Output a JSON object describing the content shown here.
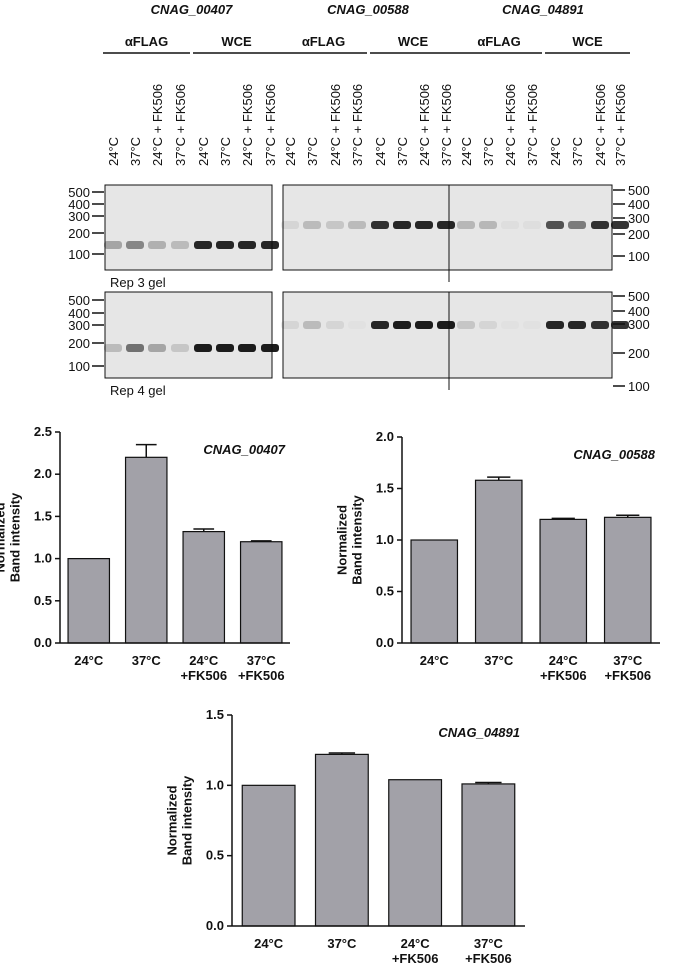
{
  "gel": {
    "genes": [
      {
        "name": "CNAG_00407",
        "groups": [
          {
            "label": "αFLAG",
            "lanes": [
              "24°C",
              "37°C",
              "24°C + FK506",
              "37°C + FK506"
            ]
          },
          {
            "label": "WCE",
            "lanes": [
              "24°C",
              "37°C",
              "24°C + FK506",
              "37°C + FK506"
            ]
          }
        ]
      },
      {
        "name": "CNAG_00588",
        "groups": [
          {
            "label": "αFLAG",
            "lanes": [
              "24°C",
              "37°C",
              "24°C + FK506",
              "37°C + FK506"
            ]
          },
          {
            "label": "WCE",
            "lanes": [
              "24°C",
              "37°C",
              "24°C + FK506",
              "37°C + FK506"
            ]
          }
        ]
      },
      {
        "name": "CNAG_04891",
        "groups": [
          {
            "label": "αFLAG",
            "lanes": [
              "24°C",
              "37°C",
              "24°C + FK506",
              "37°C + FK506"
            ]
          },
          {
            "label": "WCE",
            "lanes": [
              "24°C",
              "37°C",
              "24°C + FK506",
              "37°C + FK506"
            ]
          }
        ]
      }
    ],
    "ladder": [
      "500",
      "400",
      "300",
      "200",
      "100"
    ],
    "replicates": [
      "Rep 3 gel",
      "Rep 4 gel"
    ]
  },
  "chart_data": [
    {
      "type": "bar",
      "title": "CNAG_00407",
      "ylabel": "Normalized\nBand intensity",
      "categories": [
        "24°C",
        "37°C",
        "24°C\n+FK506",
        "37°C\n+FK506"
      ],
      "values": [
        1.0,
        2.2,
        1.32,
        1.2
      ],
      "errors": [
        0,
        0.15,
        0.03,
        0.01
      ],
      "color": "#a2a1a8",
      "ylim": [
        0,
        2.5
      ],
      "yticks": [
        {
          "value": 0,
          "label": "0.0"
        },
        0.5,
        {
          "value": 1,
          "label": "1.0"
        },
        1.5,
        {
          "value": 2,
          "label": "2.0"
        },
        2.5
      ]
    },
    {
      "type": "bar",
      "title": "CNAG_00588",
      "ylabel": "Normalized\nBand intensity",
      "categories": [
        "24°C",
        "37°C",
        "24°C\n+FK506",
        "37°C\n+FK506"
      ],
      "values": [
        1.0,
        1.58,
        1.2,
        1.22
      ],
      "errors": [
        0,
        0.03,
        0.01,
        0.02
      ],
      "color": "#a2a1a8",
      "ylim": [
        0,
        2
      ],
      "yticks": [
        {
          "value": 0,
          "label": "0.0"
        },
        0.5,
        {
          "value": 1,
          "label": "1.0"
        },
        1.5,
        {
          "value": 2,
          "label": "2.0"
        }
      ]
    },
    {
      "type": "bar",
      "title": "CNAG_04891",
      "ylabel": "Normalized\nBand intensity",
      "categories": [
        "24°C",
        "37°C",
        "24°C\n+FK506",
        "37°C\n+FK506"
      ],
      "values": [
        1.0,
        1.22,
        1.04,
        1.01
      ],
      "errors": [
        0,
        0.01,
        0,
        0.01
      ],
      "color": "#a2a1a8",
      "ylim": [
        0,
        1.5
      ],
      "yticks": [
        {
          "value": 0,
          "label": "0.0"
        },
        0.5,
        {
          "value": 1,
          "label": "1.0"
        },
        1.5
      ]
    }
  ]
}
